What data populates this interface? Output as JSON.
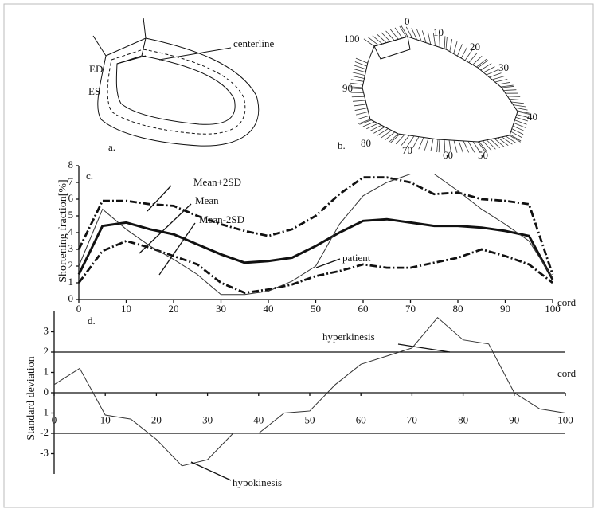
{
  "diagrams": {
    "a": {
      "caption": "a.",
      "labels": [
        "ED",
        "ES",
        "centerline"
      ]
    },
    "b": {
      "caption": "b.",
      "labels": [
        "0",
        "10",
        "20",
        "30",
        "40",
        "50",
        "60",
        "70",
        "80",
        "90",
        "100"
      ]
    }
  },
  "chart_data": [
    {
      "type": "line",
      "panel": "c.",
      "x_label": "cord",
      "y_label": "Shortening fraction[%]",
      "x": [
        0,
        5,
        10,
        15,
        20,
        25,
        30,
        35,
        40,
        45,
        50,
        55,
        60,
        65,
        70,
        75,
        80,
        85,
        90,
        95,
        100
      ],
      "xlim": [
        0,
        100
      ],
      "xticks": [
        0,
        10,
        20,
        30,
        40,
        50,
        60,
        70,
        80,
        90,
        100
      ],
      "ylim": [
        0,
        8
      ],
      "yticks": [
        0,
        1,
        2,
        3,
        4,
        5,
        6,
        7,
        8
      ],
      "series": [
        {
          "name": "Mean+2SD",
          "color": "#111",
          "style": "dash-dot",
          "values": [
            3.0,
            5.9,
            5.9,
            5.7,
            5.6,
            5.0,
            4.5,
            4.1,
            3.8,
            4.2,
            5.0,
            6.3,
            7.3,
            7.3,
            7.0,
            6.3,
            6.4,
            6.0,
            5.9,
            5.7,
            1.5
          ]
        },
        {
          "name": "Mean",
          "color": "#111",
          "style": "thick",
          "values": [
            1.5,
            4.4,
            4.6,
            4.2,
            3.9,
            3.3,
            2.7,
            2.2,
            2.3,
            2.5,
            3.2,
            4.0,
            4.7,
            4.8,
            4.6,
            4.4,
            4.4,
            4.3,
            4.1,
            3.8,
            1.2
          ]
        },
        {
          "name": "Mean-2SD",
          "color": "#111",
          "style": "dash-dot",
          "values": [
            1.0,
            2.9,
            3.5,
            3.1,
            2.6,
            2.1,
            1.0,
            0.4,
            0.6,
            0.9,
            1.4,
            1.7,
            2.1,
            1.9,
            1.9,
            2.2,
            2.5,
            3.0,
            2.6,
            2.1,
            1.0
          ]
        },
        {
          "name": "patient",
          "color": "#333",
          "style": "thin",
          "values": [
            2.0,
            5.4,
            4.2,
            3.2,
            2.4,
            1.5,
            0.3,
            0.3,
            0.5,
            1.1,
            2.0,
            4.5,
            6.2,
            7.0,
            7.5,
            7.5,
            6.5,
            5.4,
            4.5,
            3.5,
            1.3
          ]
        }
      ]
    },
    {
      "type": "line",
      "panel": "d.",
      "x_label": "cord",
      "y_label": "Standard deviation",
      "annotations": [
        "hyperkinesis",
        "hypokinesis"
      ],
      "x": [
        0,
        5,
        10,
        15,
        20,
        25,
        30,
        35,
        40,
        45,
        50,
        55,
        60,
        65,
        70,
        75,
        80,
        85,
        90,
        95,
        100
      ],
      "xlim": [
        0,
        100
      ],
      "xticks": [
        0,
        10,
        20,
        30,
        40,
        50,
        60,
        70,
        80,
        90,
        100
      ],
      "ylim": [
        -4,
        4
      ],
      "yticks": [
        -3,
        -2,
        -1,
        0,
        1,
        2,
        3
      ],
      "reference_lines": [
        2,
        -2
      ],
      "series": [
        {
          "name": "patient",
          "color": "#333",
          "style": "thin",
          "values": [
            0.4,
            1.2,
            -1.1,
            -1.3,
            -2.3,
            -3.6,
            -3.3,
            -2.0,
            -2.0,
            -1.0,
            -0.9,
            0.4,
            1.4,
            1.8,
            2.2,
            3.7,
            2.6,
            2.4,
            0.0,
            -0.8,
            -1.0
          ]
        }
      ]
    }
  ]
}
